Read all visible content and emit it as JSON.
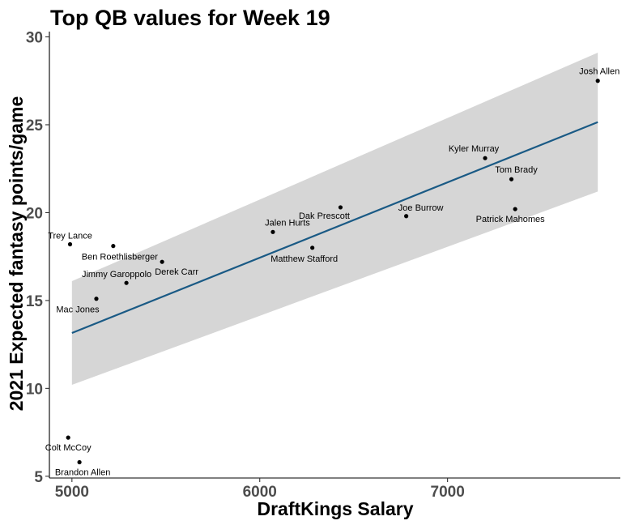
{
  "chart_data": {
    "type": "scatter",
    "title": "Top QB values for Week 19",
    "xlabel": "DraftKings Salary",
    "ylabel": "2021 Expected fantasy points/game",
    "xlim": [
      4880,
      7920
    ],
    "ylim": [
      4.9,
      30.3
    ],
    "x_ticks": [
      5000,
      6000,
      7000
    ],
    "y_ticks": [
      5,
      10,
      15,
      20,
      25,
      30
    ],
    "grid": false,
    "point_color": "#000000",
    "trend_color": "#1a5a85",
    "band_color": "#d6d6d6",
    "points": [
      {
        "name": "Josh Allen",
        "x": 7800,
        "y": 27.5
      },
      {
        "name": "Kyler Murray",
        "x": 7200,
        "y": 23.1
      },
      {
        "name": "Tom Brady",
        "x": 7340,
        "y": 21.9
      },
      {
        "name": "Patrick Mahomes",
        "x": 7360,
        "y": 20.2
      },
      {
        "name": "Joe Burrow",
        "x": 6780,
        "y": 19.8
      },
      {
        "name": "Dak Prescott",
        "x": 6430,
        "y": 20.3
      },
      {
        "name": "Jalen Hurts",
        "x": 6070,
        "y": 18.9
      },
      {
        "name": "Matthew Stafford",
        "x": 6280,
        "y": 18.0
      },
      {
        "name": "Trey Lance",
        "x": 4990,
        "y": 18.2
      },
      {
        "name": "Ben Roethlisberger",
        "x": 5220,
        "y": 18.1
      },
      {
        "name": "Derek Carr",
        "x": 5480,
        "y": 17.2
      },
      {
        "name": "Jimmy Garoppolo",
        "x": 5290,
        "y": 16.0
      },
      {
        "name": "Mac Jones",
        "x": 5130,
        "y": 15.1
      },
      {
        "name": "Colt McCoy",
        "x": 4980,
        "y": 7.2
      },
      {
        "name": "Brandon Allen",
        "x": 5040,
        "y": 5.8
      }
    ],
    "trend": {
      "x": [
        5000,
        7800
      ],
      "fit": [
        13.15,
        25.15
      ],
      "lower": [
        10.2,
        21.2
      ],
      "upper": [
        16.1,
        29.1
      ]
    }
  }
}
